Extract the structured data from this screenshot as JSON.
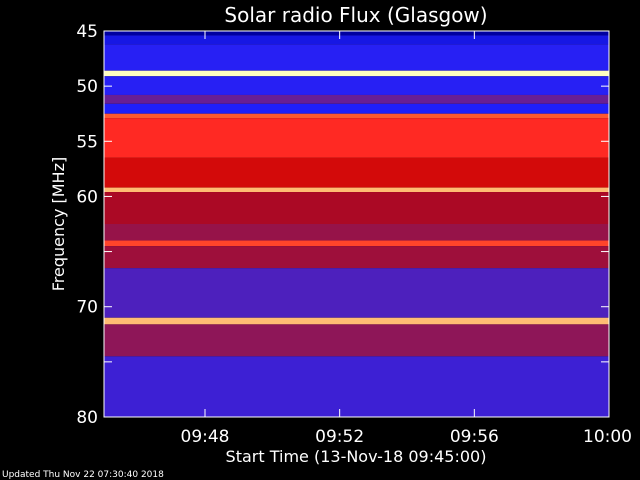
{
  "chart_data": {
    "type": "heatmap",
    "title": "Solar radio Flux (Glasgow)",
    "ylabel": "Frequency [MHz]",
    "xlabel": "Start Time (13-Nov-18 09:45:00)",
    "footer": "Updated Thu Nov 22 07:30:40 2018",
    "xlim": [
      "09:45:00",
      "10:00:00"
    ],
    "ylim": [
      45,
      80
    ],
    "x_ticks": [
      "09:48",
      "09:52",
      "09:56",
      "10:00"
    ],
    "y_ticks": [
      45,
      50,
      55,
      60,
      65,
      70,
      75,
      80
    ],
    "y_tick_labels": [
      "45",
      "50",
      "55",
      "60",
      "",
      "70",
      "",
      "80"
    ],
    "colormap": [
      "#0000a0",
      "#2020ff",
      "#7a1f7a",
      "#c00000",
      "#ff2020",
      "#ff9040",
      "#ffffc0"
    ],
    "bands": [
      {
        "f0": 45.0,
        "f1": 45.4,
        "level": 0.0
      },
      {
        "f0": 45.4,
        "f1": 46.2,
        "level": 0.12
      },
      {
        "f0": 46.2,
        "f1": 48.6,
        "level": 0.18
      },
      {
        "f0": 48.6,
        "f1": 49.1,
        "level": 1.0
      },
      {
        "f0": 49.1,
        "f1": 50.8,
        "level": 0.18
      },
      {
        "f0": 50.8,
        "f1": 51.6,
        "level": 0.3
      },
      {
        "f0": 51.6,
        "f1": 52.5,
        "level": 0.16
      },
      {
        "f0": 52.5,
        "f1": 52.9,
        "level": 0.75
      },
      {
        "f0": 52.9,
        "f1": 56.5,
        "level": 0.68
      },
      {
        "f0": 56.5,
        "f1": 59.2,
        "level": 0.55
      },
      {
        "f0": 59.2,
        "f1": 59.6,
        "level": 0.9
      },
      {
        "f0": 59.6,
        "f1": 62.5,
        "level": 0.45
      },
      {
        "f0": 62.5,
        "f1": 64.0,
        "level": 0.4
      },
      {
        "f0": 64.0,
        "f1": 64.5,
        "level": 0.72
      },
      {
        "f0": 64.5,
        "f1": 66.5,
        "level": 0.42
      },
      {
        "f0": 66.5,
        "f1": 71.0,
        "level": 0.25
      },
      {
        "f0": 71.0,
        "f1": 71.6,
        "level": 0.9
      },
      {
        "f0": 71.6,
        "f1": 74.5,
        "level": 0.38
      },
      {
        "f0": 74.5,
        "f1": 80.0,
        "level": 0.22
      }
    ]
  }
}
